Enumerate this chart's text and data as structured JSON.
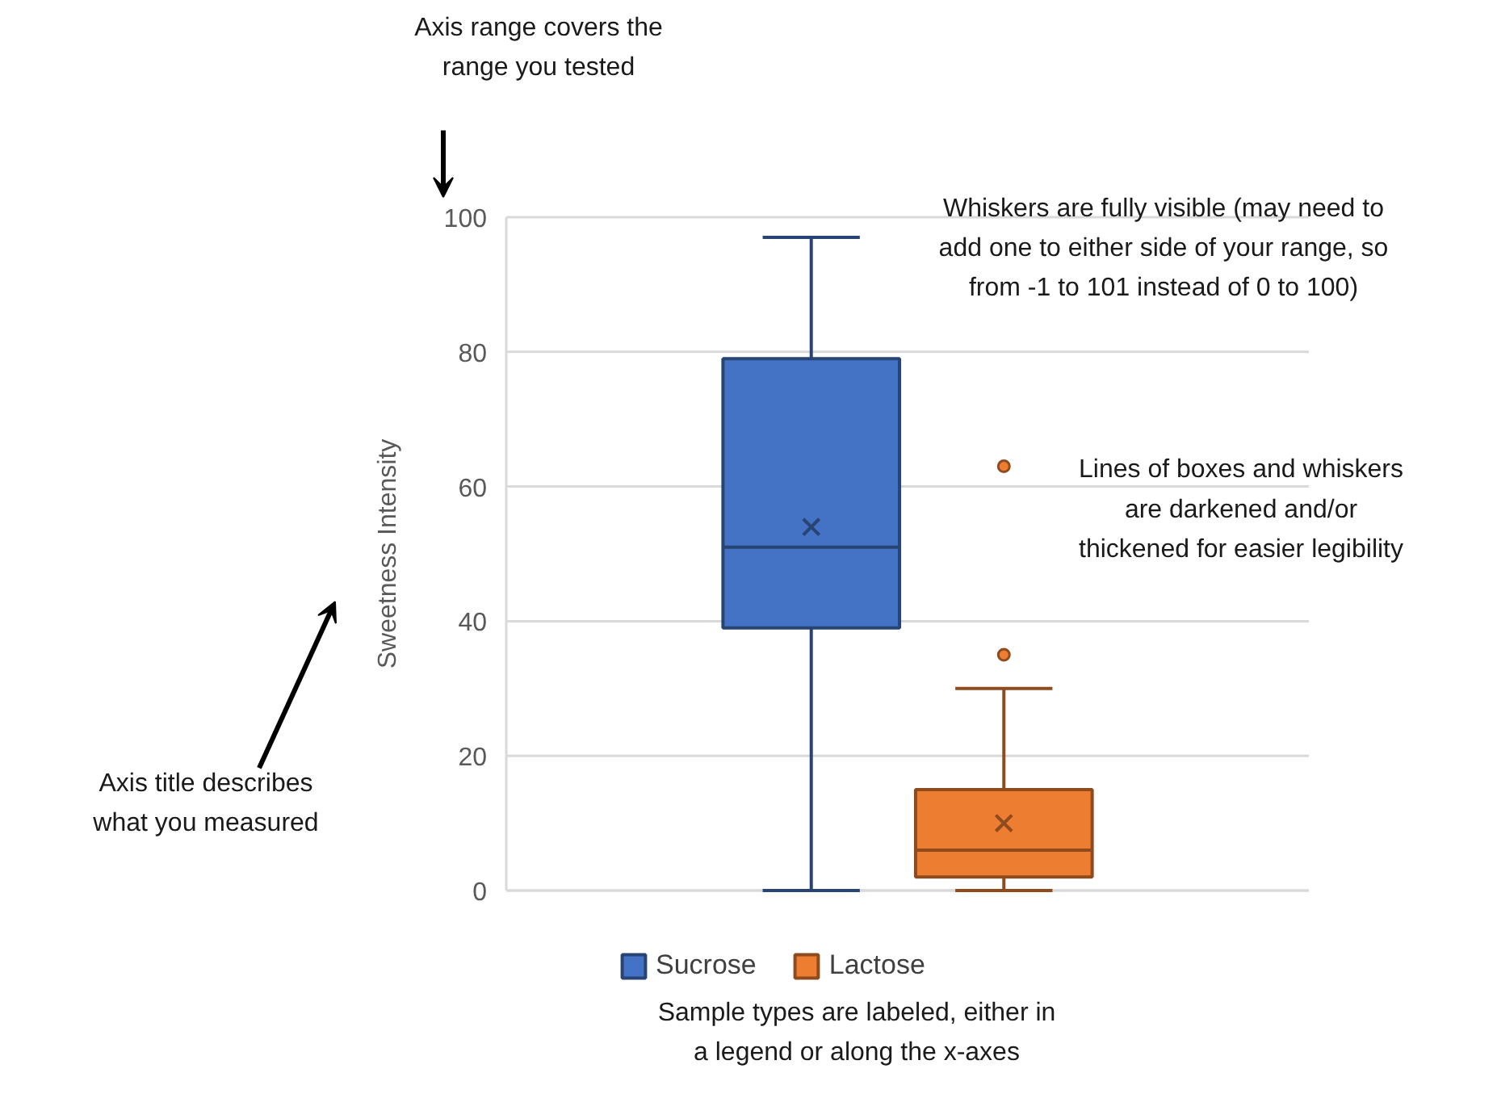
{
  "chart_data": {
    "type": "box",
    "categories": [
      null
    ],
    "ylabel": "Sweetness Intensity",
    "ylim": [
      0,
      100
    ],
    "yticks": [
      0,
      20,
      40,
      60,
      80,
      100
    ],
    "grid": "y",
    "legend": "bottom",
    "series": [
      {
        "name": "Sucrose",
        "color": "#4472c4",
        "boxes": [
          {
            "low": 0,
            "q1": 39,
            "median": 51,
            "q3": 79,
            "high": 97,
            "mean": 54
          }
        ]
      },
      {
        "name": "Lactose",
        "color": "#ed7d31",
        "boxes": [
          {
            "low": 0,
            "q1": 2,
            "median": 6,
            "q3": 15,
            "high": 30,
            "mean": 10,
            "outliers": [
              35,
              63
            ]
          }
        ]
      }
    ],
    "annotations": [
      "Axis range covers the\nrange you tested",
      "Whiskers are fully visible (may need to\nadd one to either side of your range, so\nfrom -1 to 101 instead of 0 to 100)",
      "Lines of boxes and whiskers\nare darkened and/or\nthickened for easier legibility",
      "Axis title describes\nwhat you measured",
      "Sample types are labeled, either in\na legend or along the x-axes"
    ]
  }
}
